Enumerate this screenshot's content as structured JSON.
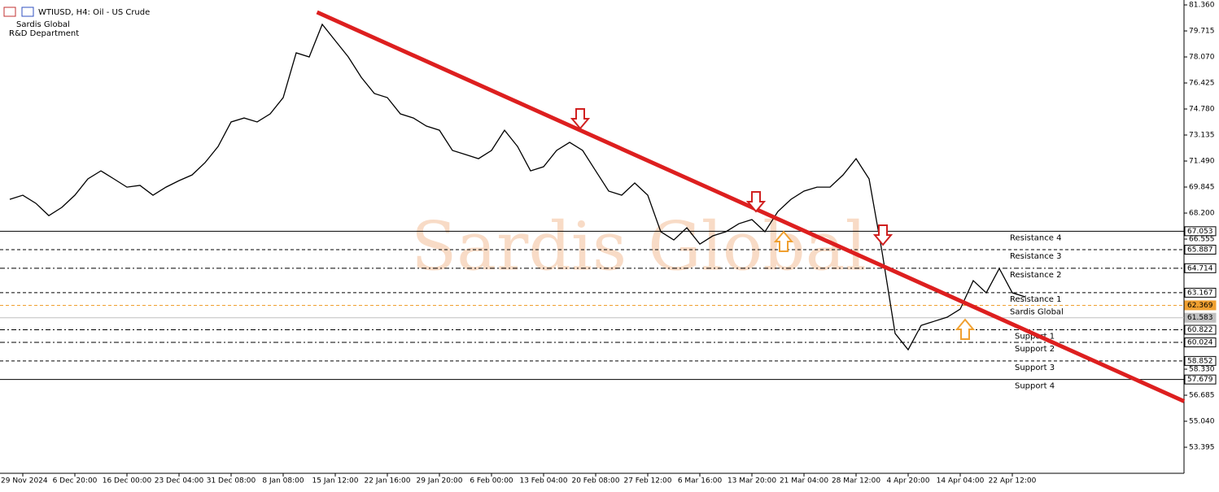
{
  "chart_data": {
    "type": "line",
    "title": "WTIUSD, H4:  Oil - US Crude",
    "subtitle": "Sardis Global",
    "department": "R&D Department",
    "watermark": "Sardis Global",
    "categories": [
      null,
      "29 Nov 2024",
      null,
      null,
      null,
      "6 Dec 20:00",
      null,
      null,
      null,
      "16 Dec 00:00",
      null,
      null,
      null,
      "23 Dec 04:00",
      null,
      null,
      null,
      "31 Dec 08:00",
      null,
      null,
      null,
      "8 Jan 08:00",
      null,
      null,
      null,
      "15 Jan 12:00",
      null,
      null,
      null,
      "22 Jan 16:00",
      null,
      null,
      null,
      "29 Jan 20:00",
      null,
      null,
      null,
      "6 Feb 00:00",
      null,
      null,
      null,
      "13 Feb 04:00",
      null,
      null,
      null,
      "20 Feb 08:00",
      null,
      null,
      null,
      "27 Feb 12:00",
      null,
      null,
      null,
      "6 Mar 16:00",
      null,
      null,
      null,
      "13 Mar 20:00",
      null,
      null,
      null,
      "21 Mar 04:00",
      null,
      null,
      null,
      "28 Mar 12:00",
      null,
      null,
      null,
      "4 Apr 20:00",
      null,
      null,
      null,
      "14 Apr 04:00",
      null,
      null,
      null,
      "22 Apr 12:00",
      null
    ],
    "series": [
      {
        "name": "WTIUSD",
        "color": "#000000",
        "values": [
          69.07,
          69.33,
          68.82,
          68.04,
          68.56,
          69.33,
          70.36,
          70.87,
          70.36,
          69.84,
          69.95,
          69.33,
          69.84,
          70.25,
          70.61,
          71.39,
          72.41,
          73.96,
          74.21,
          73.96,
          74.47,
          75.5,
          78.33,
          78.07,
          80.13,
          79.1,
          78.07,
          76.78,
          75.76,
          75.5,
          74.47,
          74.21,
          73.7,
          73.44,
          72.16,
          71.9,
          71.64,
          72.16,
          73.44,
          72.41,
          70.87,
          71.13,
          72.16,
          72.67,
          72.16,
          70.87,
          69.59,
          69.33,
          70.1,
          69.33,
          67.02,
          66.5,
          67.27,
          66.24,
          66.76,
          67.02,
          67.53,
          67.79,
          67.02,
          68.3,
          69.07,
          69.59,
          69.84,
          69.84,
          70.61,
          71.64,
          70.36,
          65.73,
          60.59,
          59.56,
          61.1,
          61.36,
          61.62,
          62.13,
          63.93,
          63.16,
          64.7,
          63.16,
          62.9
        ]
      }
    ],
    "trendline": {
      "color": "#dd1f1f",
      "x": [
        23.6,
        90.2
      ],
      "y": [
        80.9,
        56.3
      ]
    },
    "levels": [
      {
        "value": 67.053,
        "name": "Resistance 4",
        "style": "solid",
        "color": "#000000"
      },
      {
        "value": 65.887,
        "name": "Resistance 3",
        "style": "dashed",
        "color": "#000000"
      },
      {
        "value": 64.714,
        "name": "Resistance 2",
        "style": "dashdot",
        "color": "#000000"
      },
      {
        "value": 63.167,
        "name": "Resistance 1",
        "style": "dashed",
        "color": "#000000"
      },
      {
        "value": 62.369,
        "name": "Sardis Global",
        "style": "dashed",
        "color": "#f0a030"
      },
      {
        "value": 61.583,
        "name": null,
        "style": "solid",
        "color": "#c0c0c0"
      },
      {
        "value": 60.822,
        "name": "Support 1",
        "style": "dashdot",
        "color": "#000000"
      },
      {
        "value": 60.024,
        "name": "Support 2",
        "style": "dashdot",
        "color": "#000000"
      },
      {
        "value": 58.852,
        "name": "Support 3",
        "style": "dashed",
        "color": "#000000"
      },
      {
        "value": 57.679,
        "name": "Support 4",
        "style": "solid",
        "color": "#000000"
      }
    ],
    "ylim": [
      51.75,
      81.67
    ],
    "yticks": [
      {
        "value": 81.36,
        "label": "81.360"
      },
      79.715,
      {
        "value": 78.07,
        "label": "78.070"
      },
      76.425,
      {
        "value": 74.78,
        "label": "74.780"
      },
      73.135,
      {
        "value": 71.49,
        "label": "71.490"
      },
      69.845,
      {
        "value": 68.2,
        "label": "68.200"
      },
      66.555,
      {
        "value": 58.33,
        "label": "58.330"
      },
      56.685,
      {
        "value": 55.04,
        "label": "55.040"
      },
      53.395
    ],
    "grid": false
  }
}
